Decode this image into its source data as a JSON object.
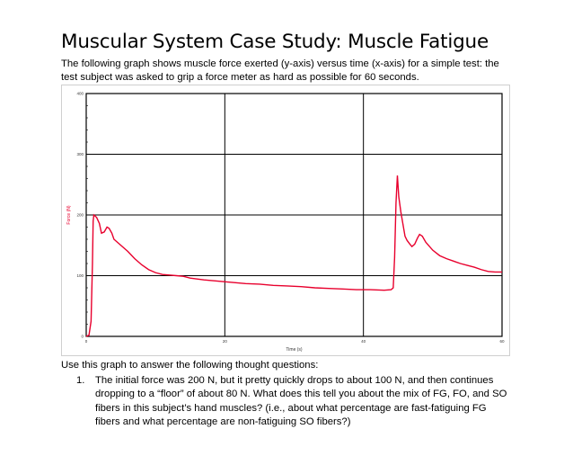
{
  "document": {
    "title": "Muscular System Case Study: Muscle Fatigue",
    "intro": "The following graph shows muscle force exerted (y-axis) versus time (x-axis) for a simple test: the test subject was asked to grip a force meter as hard as possible for 60 seconds.",
    "questions_intro": "Use this graph to answer the following thought questions:",
    "questions": [
      {
        "number": "1.",
        "text": "The initial force was 200 N, but it pretty quickly drops to about 100 N, and then continues dropping to a “floor” of about 80 N. What does this tell you about the mix of FG, FO, and SO fibers in this subject’s hand muscles? (i.e., about what percentage are fast-fatiguing FG fibers and what percentage are non-fatiguing SO fibers?)"
      }
    ]
  },
  "chart_data": {
    "type": "line",
    "xlabel": "Time (s)",
    "ylabel": "Force (N)",
    "xlim": [
      0,
      60
    ],
    "ylim": [
      0,
      400
    ],
    "x_ticks": [
      0,
      20,
      40,
      60
    ],
    "y_ticks": [
      0,
      100,
      200,
      300,
      400
    ],
    "grid": true,
    "series": [
      {
        "color": "#e8002d",
        "points": [
          [
            0,
            0
          ],
          [
            0.4,
            2
          ],
          [
            0.7,
            25
          ],
          [
            0.9,
            120
          ],
          [
            1.0,
            190
          ],
          [
            1.1,
            200
          ],
          [
            1.5,
            196
          ],
          [
            1.9,
            186
          ],
          [
            2.2,
            170
          ],
          [
            2.6,
            172
          ],
          [
            3.0,
            180
          ],
          [
            3.3,
            178
          ],
          [
            3.7,
            170
          ],
          [
            4.0,
            160
          ],
          [
            4.5,
            155
          ],
          [
            5,
            150
          ],
          [
            6,
            140
          ],
          [
            7,
            128
          ],
          [
            8,
            118
          ],
          [
            9,
            110
          ],
          [
            10,
            105
          ],
          [
            11,
            102
          ],
          [
            12,
            101
          ],
          [
            13,
            100
          ],
          [
            14,
            99
          ],
          [
            15,
            96
          ],
          [
            17,
            93
          ],
          [
            19,
            91
          ],
          [
            21,
            89
          ],
          [
            23,
            87
          ],
          [
            25,
            86
          ],
          [
            27,
            84
          ],
          [
            29,
            83
          ],
          [
            31,
            82
          ],
          [
            33,
            80
          ],
          [
            35,
            79
          ],
          [
            37,
            78
          ],
          [
            39,
            77
          ],
          [
            41,
            77
          ],
          [
            43,
            76
          ],
          [
            44.0,
            77
          ],
          [
            44.3,
            80
          ],
          [
            44.5,
            130
          ],
          [
            44.7,
            220
          ],
          [
            44.9,
            265
          ],
          [
            45.1,
            230
          ],
          [
            45.4,
            205
          ],
          [
            45.7,
            185
          ],
          [
            46.0,
            165
          ],
          [
            46.3,
            158
          ],
          [
            46.7,
            152
          ],
          [
            47.0,
            148
          ],
          [
            47.4,
            152
          ],
          [
            47.8,
            162
          ],
          [
            48.1,
            168
          ],
          [
            48.5,
            165
          ],
          [
            49,
            155
          ],
          [
            50,
            142
          ],
          [
            51,
            133
          ],
          [
            52,
            128
          ],
          [
            53,
            124
          ],
          [
            54,
            120
          ],
          [
            55,
            117
          ],
          [
            56,
            114
          ],
          [
            57,
            110
          ],
          [
            58,
            107
          ],
          [
            59,
            106
          ],
          [
            60,
            106
          ]
        ]
      }
    ]
  }
}
